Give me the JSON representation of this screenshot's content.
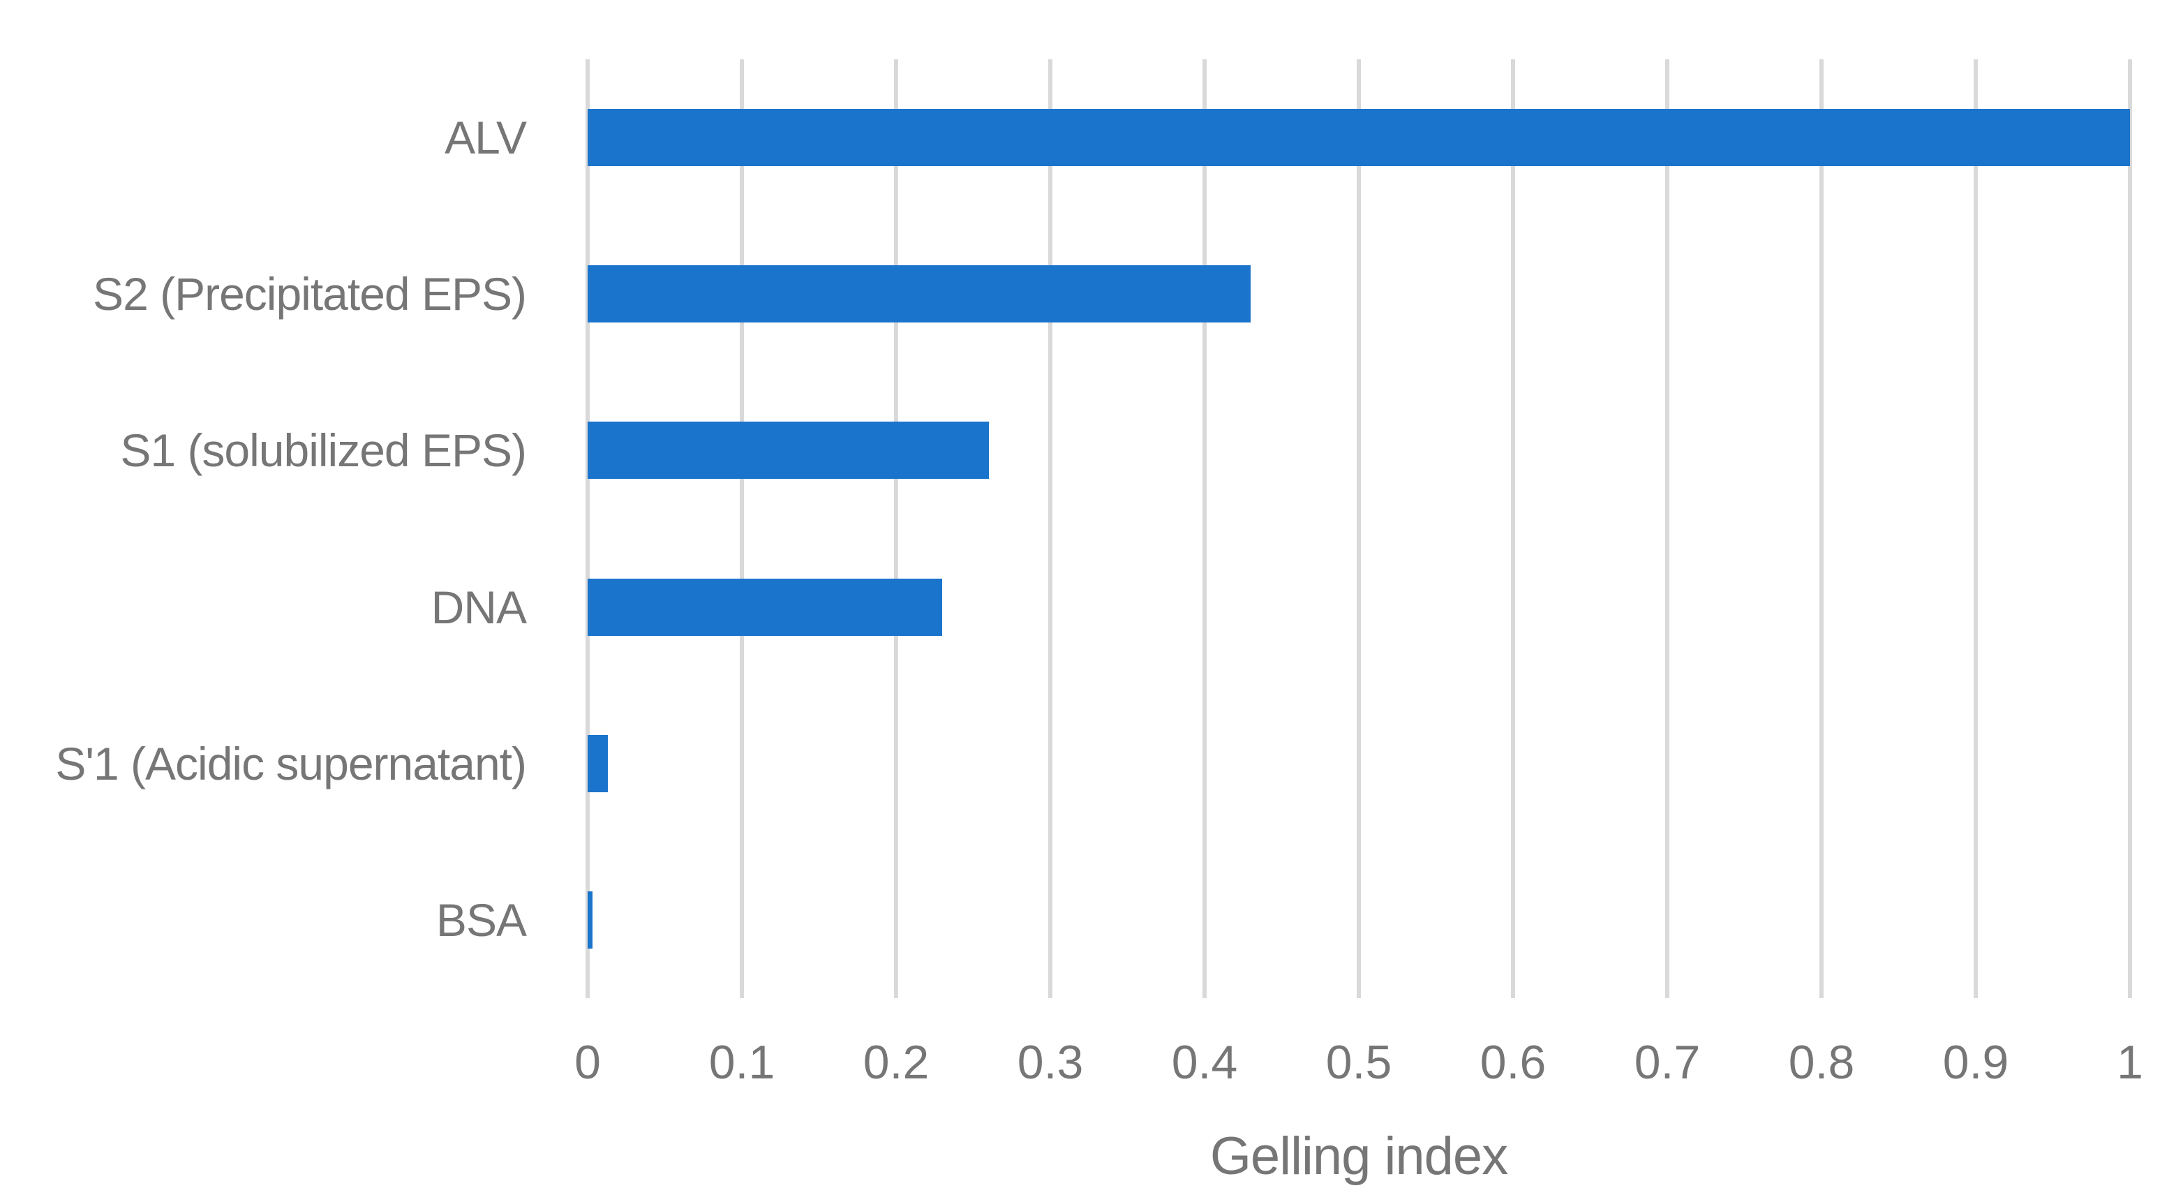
{
  "chart_data": {
    "type": "bar",
    "orientation": "horizontal",
    "title": "",
    "xlabel": "Gelling index",
    "ylabel": "",
    "categories": [
      "ALV",
      "S2 (Precipitated EPS)",
      "S1 (solubilized EPS)",
      "DNA",
      "S'1 (Acidic supernatant)",
      "BSA"
    ],
    "values": [
      1.0,
      0.43,
      0.26,
      0.23,
      0.013,
      0.003
    ],
    "xlim": [
      0,
      1
    ],
    "x_tick_labels": [
      "0",
      "0.1",
      "0.2",
      "0.3",
      "0.4",
      "0.5",
      "0.6",
      "0.7",
      "0.8",
      "0.9",
      "1"
    ],
    "grid": "vertical-gridlines-only",
    "legend_position": "none",
    "colors": {
      "bar": "#1B74CB",
      "gridline": "#D9D9D9",
      "text": "#767676",
      "background": "#FFFFFF"
    }
  }
}
